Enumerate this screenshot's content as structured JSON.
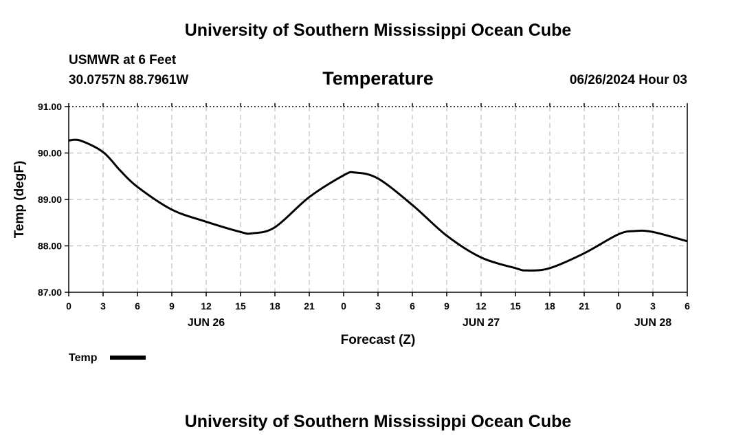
{
  "header": {
    "title": "University of Southern Mississippi Ocean Cube",
    "station": "USMWR at 6 Feet",
    "coords": "30.0757N  88.7961W",
    "subtitle": "Temperature",
    "datetime": "06/26/2024 Hour 03"
  },
  "footer": {
    "title": "University of Southern Mississippi Ocean Cube"
  },
  "chart_data": {
    "type": "line",
    "title": "Temperature",
    "xlabel": "Forecast (Z)",
    "ylabel": "Temp (degF)",
    "ylim": [
      87.0,
      91.0
    ],
    "yticks": [
      "87.00",
      "88.00",
      "89.00",
      "90.00",
      "91.00"
    ],
    "xlim": [
      0,
      54
    ],
    "xtick_values": [
      0,
      3,
      6,
      9,
      12,
      15,
      18,
      21,
      24,
      27,
      30,
      33,
      36,
      39,
      42,
      45,
      48,
      51,
      54
    ],
    "xtick_labels": [
      "0",
      "3",
      "6",
      "9",
      "12",
      "15",
      "18",
      "21",
      "0",
      "3",
      "6",
      "9",
      "12",
      "15",
      "18",
      "21",
      "0",
      "3",
      "6"
    ],
    "day_labels": [
      {
        "x": 12,
        "label": "JUN 26"
      },
      {
        "x": 36,
        "label": "JUN 27"
      },
      {
        "x": 51,
        "label": "JUN 28"
      }
    ],
    "grid": true,
    "legend": "bottom-left",
    "series": [
      {
        "name": "Temp",
        "color": "#000000",
        "x": [
          0,
          1,
          3,
          4.5,
          6,
          9,
          12,
          15,
          16,
          18,
          21,
          24,
          25,
          27,
          30,
          33,
          36,
          39,
          40,
          42,
          45,
          48,
          49.5,
          51,
          54
        ],
        "y": [
          90.27,
          90.27,
          90.02,
          89.62,
          89.27,
          88.78,
          88.52,
          88.3,
          88.27,
          88.4,
          89.05,
          89.52,
          89.58,
          89.45,
          88.88,
          88.22,
          87.75,
          87.52,
          87.47,
          87.52,
          87.84,
          88.25,
          88.32,
          88.3,
          88.1
        ]
      }
    ]
  }
}
